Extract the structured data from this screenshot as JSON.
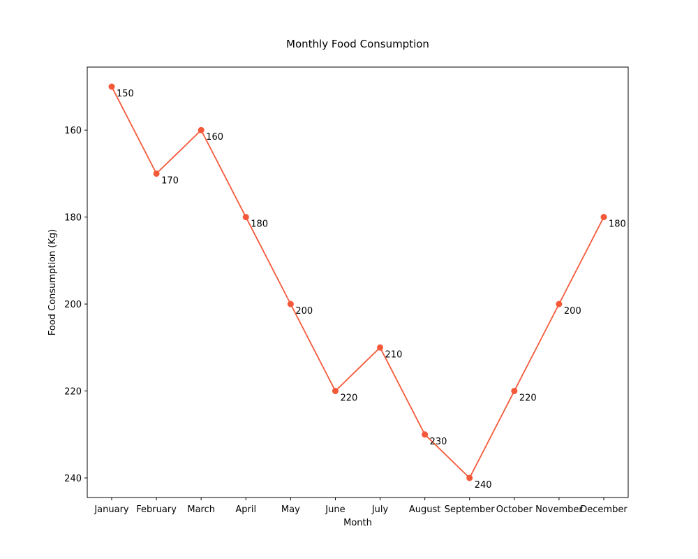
{
  "chart_data": {
    "type": "line",
    "title": "Monthly Food Consumption",
    "xlabel": "Month",
    "ylabel": "Food Consumption (Kg)",
    "categories": [
      "January",
      "February",
      "March",
      "April",
      "May",
      "June",
      "July",
      "August",
      "September",
      "October",
      "November",
      "December"
    ],
    "series": [
      {
        "values": [
          150,
          170,
          160,
          180,
          200,
          220,
          210,
          230,
          240,
          220,
          200,
          180
        ]
      }
    ],
    "data_labels": [
      "150",
      "170",
      "160",
      "180",
      "200",
      "220",
      "210",
      "230",
      "240",
      "220",
      "200",
      "180"
    ],
    "ylim": [
      145.5,
      244.5
    ],
    "y_inverted": true,
    "yticks": [
      160,
      180,
      200,
      220,
      240
    ],
    "ytick_labels": [
      "160",
      "180",
      "200",
      "220",
      "240"
    ],
    "grid": false,
    "line_color": "#f5593a",
    "marker": "circle"
  }
}
